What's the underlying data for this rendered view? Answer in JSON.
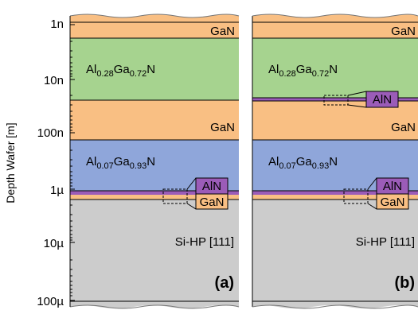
{
  "axis": {
    "ylabel": "Depth Wafer [m]",
    "ticks": [
      "1n",
      "10n",
      "100n",
      "1µ",
      "10µ",
      "100µ"
    ]
  },
  "panels": [
    {
      "id": "a",
      "label": "(a)",
      "layers": {
        "gan_top": "GaN",
        "algan_top": {
          "base": "Al",
          "sub1": "0.28",
          "mid": "Ga",
          "sub2": "0.72",
          "end": "N"
        },
        "gan_mid": "GaN",
        "algan_bot": {
          "base": "Al",
          "sub1": "0.07",
          "mid": "Ga",
          "sub2": "0.93",
          "end": "N"
        },
        "aln": "AlN",
        "gan_thin": "GaN",
        "si": "Si-HP [111]"
      }
    },
    {
      "id": "b",
      "label": "(b)",
      "layers": {
        "gan_top": "GaN",
        "algan_top": {
          "base": "Al",
          "sub1": "0.28",
          "mid": "Ga",
          "sub2": "0.72",
          "end": "N"
        },
        "aln_inter": "AlN",
        "gan_mid": "GaN",
        "algan_bot": {
          "base": "Al",
          "sub1": "0.07",
          "mid": "Ga",
          "sub2": "0.93",
          "end": "N"
        },
        "aln": "AlN",
        "gan_thin": "GaN",
        "si": "Si-HP [111]"
      }
    }
  ],
  "colors": {
    "gan": "#f9bf83",
    "algan_top": "#a6d38f",
    "algan_bot": "#8fa6da",
    "aln": "#9b5cb8",
    "si": "#cccccc"
  }
}
